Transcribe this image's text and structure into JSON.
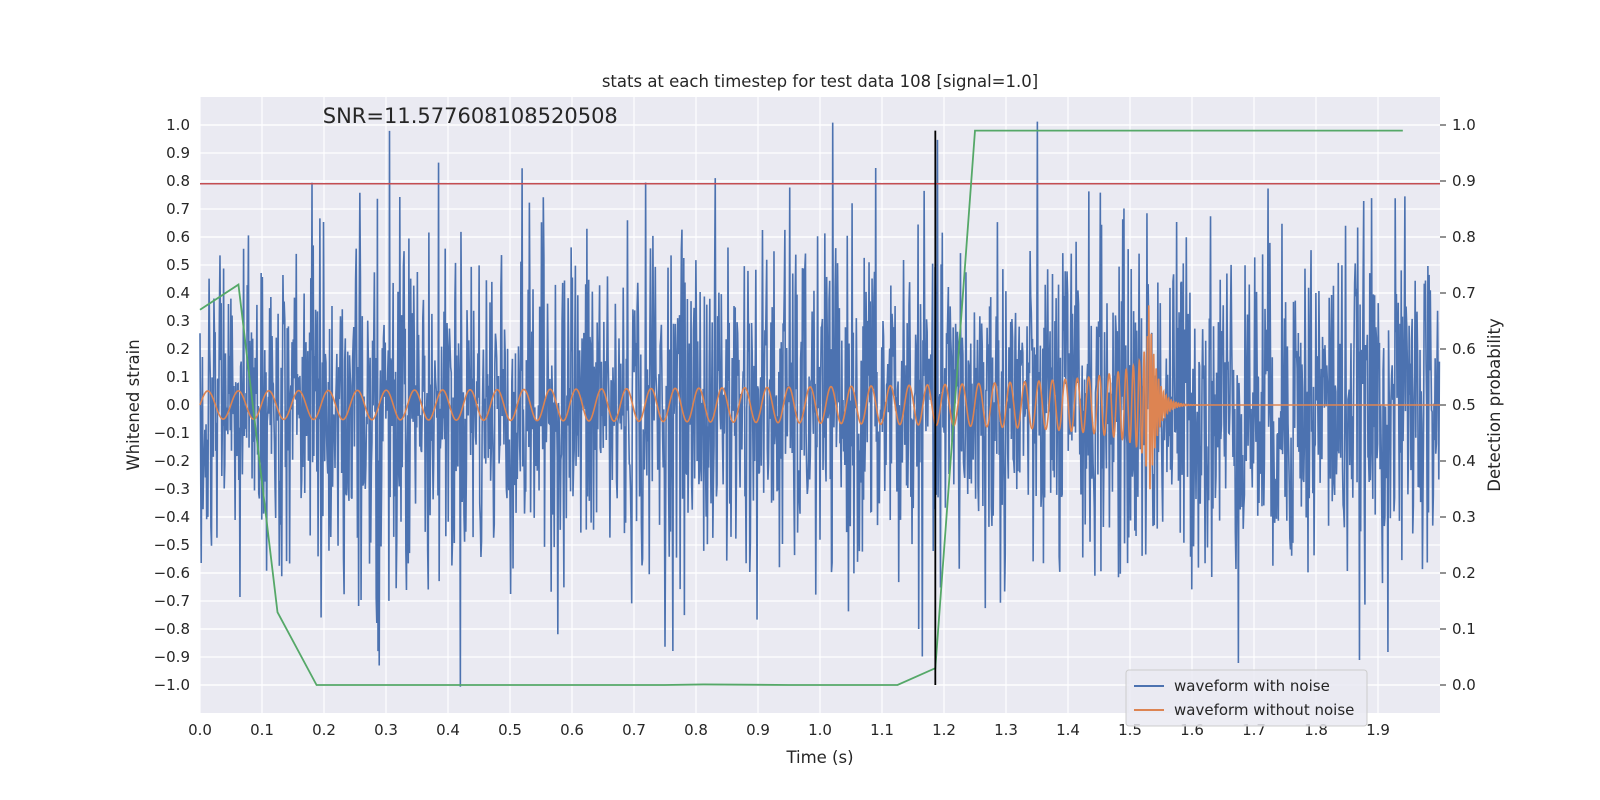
{
  "chart_data": {
    "type": "line",
    "title": "stats at each timestep for test data 108 [signal=1.0]",
    "annotation": "SNR=11.577608108520508",
    "xlabel": "Time (s)",
    "ylabel_left": "Whitened strain",
    "ylabel_right": "Detection probability",
    "xlim": [
      0.0,
      2.0
    ],
    "ylim_left": [
      -1.1,
      1.1
    ],
    "ylim_right": [
      -0.05,
      1.05
    ],
    "x_ticks": [
      "0.0",
      "0.1",
      "0.2",
      "0.3",
      "0.4",
      "0.5",
      "0.6",
      "0.7",
      "0.8",
      "0.9",
      "1.0",
      "1.1",
      "1.2",
      "1.3",
      "1.4",
      "1.5",
      "1.6",
      "1.7",
      "1.8",
      "1.9"
    ],
    "y_ticks_left": [
      "1.0",
      "0.9",
      "0.8",
      "0.7",
      "0.6",
      "0.5",
      "0.4",
      "0.3",
      "0.2",
      "0.1",
      "0.0",
      "−0.1",
      "−0.2",
      "−0.3",
      "−0.4",
      "−0.5",
      "−0.6",
      "−0.7",
      "−0.8",
      "−0.9",
      "−1.0"
    ],
    "y_ticks_right": [
      "1.0",
      "0.9",
      "0.8",
      "0.7",
      "0.6",
      "0.5",
      "0.4",
      "0.3",
      "0.2",
      "0.1",
      "0.0"
    ],
    "threshold_y": 0.79,
    "detection_time": 1.186,
    "series": [
      {
        "name": "waveform with noise",
        "color": "#4c72b0",
        "axis": "left",
        "description": "noisy whitened strain, std approx 0.3, range approx -0.99 to 0.98",
        "noise_std": 0.3,
        "points": 2048
      },
      {
        "name": "waveform without noise",
        "color": "#dd8452",
        "axis": "left",
        "description": "chirp waveform, amplitude 0.05 at t=0 growing to 0.37 at merger t=1.53, ringdown after",
        "merger_time": 1.53,
        "amp_start": 0.05,
        "amp_peak": 0.37,
        "freq_start": 20
      },
      {
        "name": "Detection probability",
        "color": "#55a868",
        "axis": "right",
        "x": [
          0.0,
          0.062,
          0.125,
          0.188,
          0.25,
          0.5,
          0.75,
          0.812,
          0.95,
          1.125,
          1.186,
          1.25,
          1.3,
          1.94
        ],
        "y": [
          0.67,
          0.715,
          0.13,
          0.0,
          0.0,
          0.0,
          0.0,
          0.001,
          0.0,
          0.0,
          0.03,
          0.99,
          0.99,
          0.99
        ]
      },
      {
        "name": "threshold",
        "color": "#c44e52",
        "axis": "left",
        "y": 0.79
      }
    ],
    "legend": {
      "placement": "lower-right",
      "entries": [
        {
          "label": "waveform with noise",
          "color": "#4c72b0"
        },
        {
          "label": "waveform without noise",
          "color": "#dd8452"
        }
      ]
    },
    "background_color": "#eaeaf2",
    "grid": true
  }
}
